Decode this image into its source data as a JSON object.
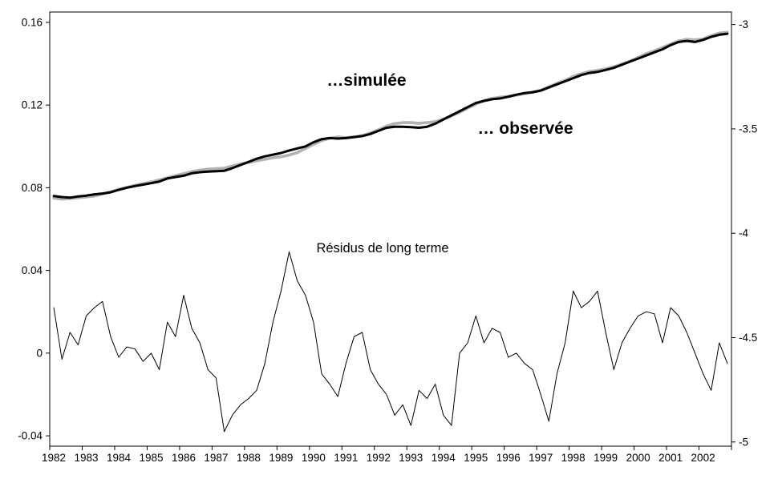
{
  "chart_data": {
    "type": "line",
    "title": "",
    "frequency": "quarterly",
    "x_start": 1982,
    "x_end": 2002,
    "grid": false,
    "legend_position": "none",
    "background": "#ffffff",
    "categories_years": [
      "1982",
      "1983",
      "1984",
      "1985",
      "1986",
      "1987",
      "1988",
      "1989",
      "1990",
      "1991",
      "1992",
      "1993",
      "1994",
      "1995",
      "1996",
      "1997",
      "1998",
      "1999",
      "2000",
      "2001",
      "2002"
    ],
    "y_left": {
      "ticks": [
        "0.16",
        "0.12",
        "0.08",
        "0.04",
        "0",
        "-0.04"
      ],
      "tick_values": [
        0.16,
        0.12,
        0.08,
        0.04,
        0,
        -0.04
      ],
      "min": -0.045,
      "max": 0.165
    },
    "y_right": {
      "ticks": [
        "-3",
        "-3.5",
        "-4",
        "-4.5",
        "-5"
      ],
      "tick_values": [
        -3,
        -3.5,
        -4,
        -4.5,
        -5
      ],
      "min": -5.02,
      "max": -2.94
    },
    "series": [
      {
        "id": "serie-simulee",
        "name": "…simulée",
        "color": "#b2b2b2",
        "width": 3.6,
        "axis": "left",
        "values": [
          0.075,
          0.0745,
          0.0748,
          0.0752,
          0.0755,
          0.076,
          0.077,
          0.078,
          0.0792,
          0.0802,
          0.0812,
          0.082,
          0.0828,
          0.0838,
          0.0848,
          0.0858,
          0.0868,
          0.0878,
          0.0885,
          0.089,
          0.0892,
          0.0895,
          0.0905,
          0.0915,
          0.0922,
          0.093,
          0.0938,
          0.0945,
          0.095,
          0.0958,
          0.097,
          0.099,
          0.101,
          0.1028,
          0.104,
          0.1045,
          0.1042,
          0.1045,
          0.1052,
          0.1065,
          0.108,
          0.1098,
          0.111,
          0.1115,
          0.1115,
          0.1112,
          0.1115,
          0.112,
          0.1132,
          0.1148,
          0.1165,
          0.1185,
          0.1205,
          0.1222,
          0.1232,
          0.1238,
          0.1242,
          0.1248,
          0.1255,
          0.1262,
          0.1272,
          0.1288,
          0.1305,
          0.132,
          0.1338,
          0.1352,
          0.1362,
          0.1368,
          0.1375,
          0.1385,
          0.1398,
          0.1412,
          0.143,
          0.1448,
          0.1462,
          0.1478,
          0.1495,
          0.151,
          0.1518,
          0.1515,
          0.152,
          0.1535,
          0.1548,
          0.1552
        ]
      },
      {
        "id": "serie-observee",
        "name": "… observée",
        "color": "#000000",
        "width": 3.0,
        "axis": "left",
        "values": [
          0.076,
          0.0755,
          0.0752,
          0.0758,
          0.0762,
          0.0768,
          0.0772,
          0.0778,
          0.079,
          0.08,
          0.0808,
          0.0815,
          0.0822,
          0.083,
          0.0845,
          0.0852,
          0.0858,
          0.087,
          0.0875,
          0.0878,
          0.088,
          0.0882,
          0.0895,
          0.091,
          0.0925,
          0.094,
          0.0952,
          0.096,
          0.0968,
          0.098,
          0.099,
          0.1,
          0.102,
          0.1035,
          0.104,
          0.1038,
          0.104,
          0.1045,
          0.105,
          0.106,
          0.1075,
          0.109,
          0.1095,
          0.1095,
          0.1093,
          0.109,
          0.1095,
          0.111,
          0.113,
          0.115,
          0.117,
          0.119,
          0.121,
          0.122,
          0.1228,
          0.1232,
          0.124,
          0.125,
          0.1258,
          0.1262,
          0.127,
          0.1285,
          0.13,
          0.1315,
          0.133,
          0.1345,
          0.1355,
          0.136,
          0.137,
          0.138,
          0.1395,
          0.141,
          0.1425,
          0.144,
          0.1455,
          0.147,
          0.149,
          0.1505,
          0.151,
          0.1505,
          0.1515,
          0.153,
          0.154,
          0.1545
        ]
      },
      {
        "id": "serie-residus",
        "name": "Résidus de long terme",
        "color": "#000000",
        "width": 1.0,
        "axis": "left",
        "values": [
          0.022,
          -0.003,
          0.01,
          0.004,
          0.018,
          0.022,
          0.025,
          0.008,
          -0.002,
          0.003,
          0.002,
          -0.004,
          0.0,
          -0.008,
          0.015,
          0.008,
          0.028,
          0.012,
          0.005,
          -0.008,
          -0.012,
          -0.038,
          -0.03,
          -0.025,
          -0.022,
          -0.018,
          -0.005,
          0.015,
          0.03,
          0.049,
          0.035,
          0.028,
          0.015,
          -0.01,
          -0.015,
          -0.021,
          -0.005,
          0.008,
          0.01,
          -0.008,
          -0.015,
          -0.02,
          -0.03,
          -0.025,
          -0.035,
          -0.018,
          -0.022,
          -0.015,
          -0.03,
          -0.035,
          0.0,
          0.005,
          0.018,
          0.005,
          0.012,
          0.01,
          -0.002,
          0.0,
          -0.005,
          -0.008,
          -0.02,
          -0.033,
          -0.01,
          0.005,
          0.03,
          0.022,
          0.025,
          0.03,
          0.01,
          -0.008,
          0.005,
          0.012,
          0.018,
          0.02,
          0.019,
          0.005,
          0.022,
          0.018,
          0.01,
          0.0,
          -0.01,
          -0.018,
          0.005,
          -0.005
        ]
      }
    ],
    "annotations": [
      {
        "id": "label-simulee",
        "text": "…simulée",
        "fx": 0.471,
        "fy": 0.177,
        "color": "#b2b2b2",
        "size": 21,
        "bold": true
      },
      {
        "id": "label-observee",
        "text": "… observée",
        "fx": 0.675,
        "fy": 0.277,
        "color": "#000000",
        "size": 21,
        "bold": true
      },
      {
        "id": "label-residus",
        "text": "Résidus de long terme",
        "fx": 0.492,
        "fy": 0.522,
        "color": "#000000",
        "size": 16.5,
        "bold": false
      }
    ]
  }
}
